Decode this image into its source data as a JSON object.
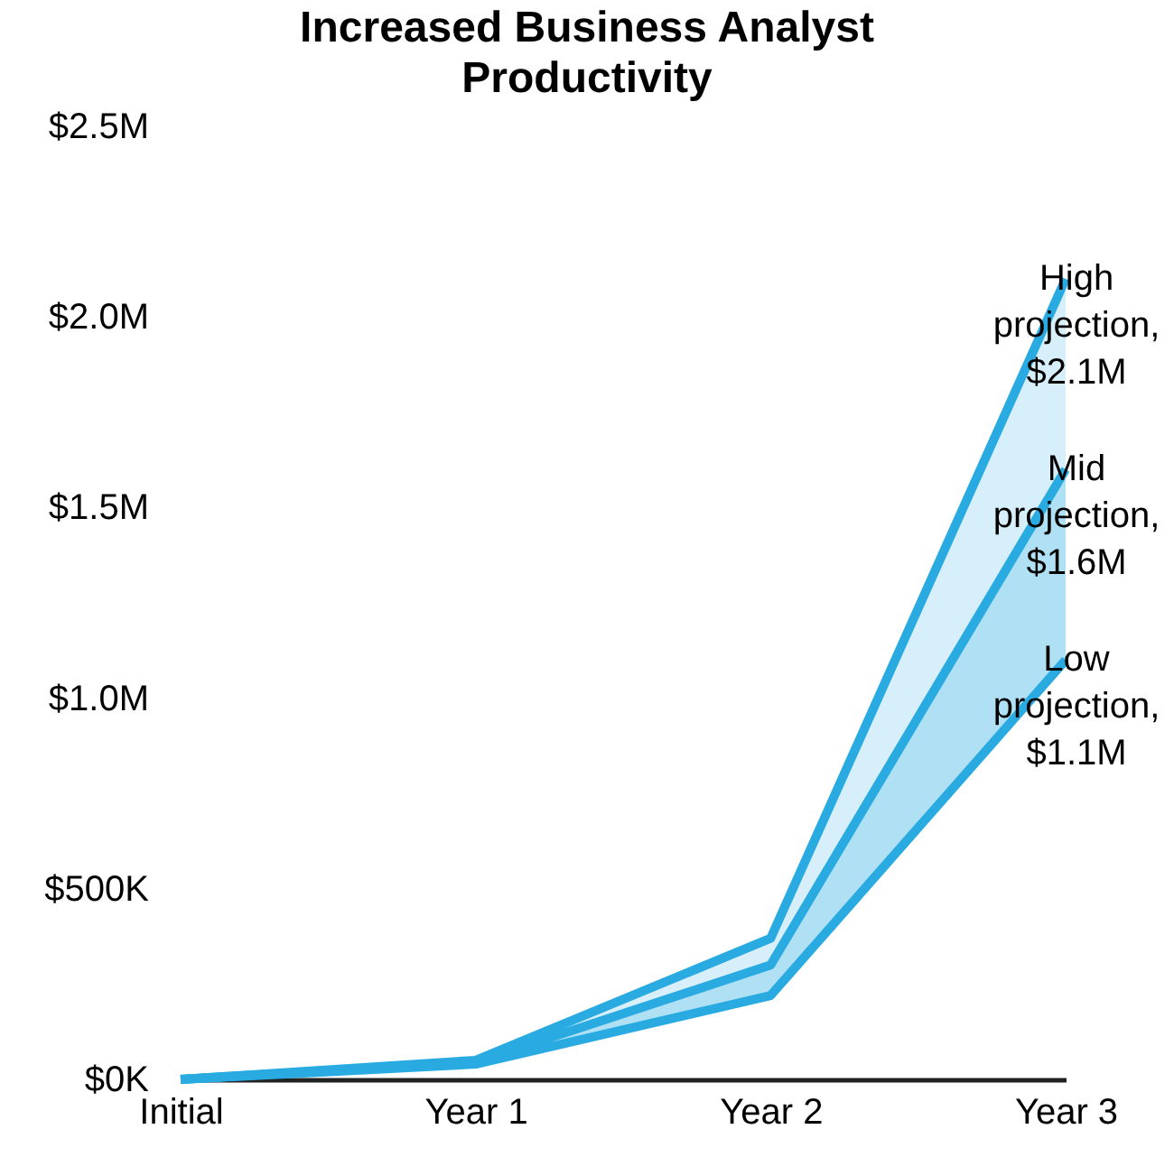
{
  "chart_data": {
    "type": "line",
    "title": "Increased Business Analyst Productivity",
    "categories": [
      "Initial",
      "Year 1",
      "Year 2",
      "Year 3"
    ],
    "series": [
      {
        "color": "#29abe2",
        "values": [
          0,
          45000,
          300000,
          1600000
        ],
        "lower": [
          0,
          40000,
          220000,
          1100000
        ],
        "upper": [
          0,
          50000,
          370000,
          2100000
        ]
      }
    ],
    "ylim": [
      0,
      2500000
    ],
    "yticks": [
      {
        "value": 0,
        "label": "$0K"
      },
      {
        "value": 500000,
        "label": "$500K"
      },
      {
        "value": 1000000,
        "label": "$1.0M"
      },
      {
        "value": 1500000,
        "label": "$1.5M"
      },
      {
        "value": 2000000,
        "label": "$2.0M"
      },
      {
        "value": 2500000,
        "label": "$2.5M"
      }
    ],
    "annotations": [
      {
        "text": "High projection, $2.1M",
        "x": "Year 3",
        "y": 2100000
      },
      {
        "text": "Mid projection, $1.6M",
        "x": "Year 3",
        "y": 1600000
      },
      {
        "text": "Low projection, $1.1M",
        "x": "Year 3",
        "y": 1100000
      }
    ],
    "grid": false
  }
}
